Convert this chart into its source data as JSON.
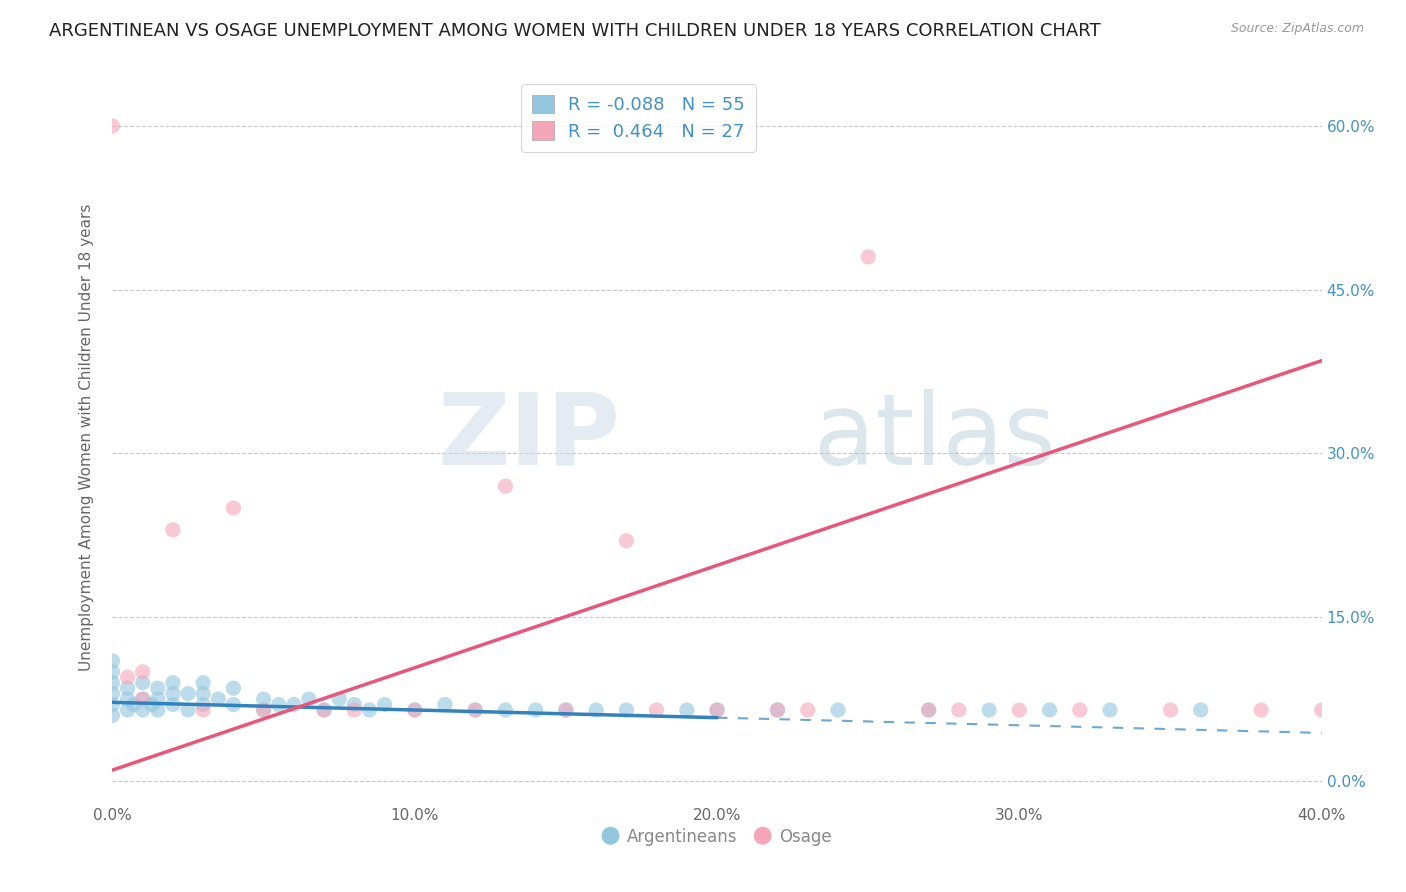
{
  "title": "ARGENTINEAN VS OSAGE UNEMPLOYMENT AMONG WOMEN WITH CHILDREN UNDER 18 YEARS CORRELATION CHART",
  "source": "Source: ZipAtlas.com",
  "ylabel": "Unemployment Among Women with Children Under 18 years",
  "xlim": [
    0.0,
    0.4
  ],
  "ylim": [
    -0.02,
    0.65
  ],
  "xticks": [
    0.0,
    0.1,
    0.2,
    0.3,
    0.4
  ],
  "xtick_labels": [
    "0.0%",
    "10.0%",
    "20.0%",
    "30.0%",
    "40.0%"
  ],
  "yticks_right": [
    0.0,
    0.15,
    0.3,
    0.45,
    0.6
  ],
  "ytick_labels_right": [
    "0.0%",
    "15.0%",
    "30.0%",
    "45.0%",
    "60.0%"
  ],
  "legend_r1": "R = -0.088",
  "legend_n1": "N = 55",
  "legend_r2": "R =  0.464",
  "legend_n2": "N = 27",
  "argentinean_color": "#92c5de",
  "osage_color": "#f4a6b8",
  "argentinean_line_color": "#3182bd",
  "osage_line_color": "#e8567a",
  "background_color": "#ffffff",
  "grid_color": "#bbbbbb",
  "title_fontsize": 13,
  "axis_label_fontsize": 11,
  "tick_fontsize": 11,
  "argentinean_scatter": {
    "x": [
      0.0,
      0.0,
      0.0,
      0.0,
      0.0,
      0.0,
      0.005,
      0.005,
      0.005,
      0.007,
      0.01,
      0.01,
      0.01,
      0.013,
      0.015,
      0.015,
      0.015,
      0.02,
      0.02,
      0.02,
      0.025,
      0.025,
      0.03,
      0.03,
      0.03,
      0.035,
      0.04,
      0.04,
      0.05,
      0.05,
      0.055,
      0.06,
      0.065,
      0.07,
      0.075,
      0.08,
      0.085,
      0.09,
      0.1,
      0.11,
      0.12,
      0.13,
      0.14,
      0.15,
      0.16,
      0.17,
      0.19,
      0.2,
      0.22,
      0.24,
      0.27,
      0.29,
      0.31,
      0.33,
      0.36
    ],
    "y": [
      0.06,
      0.07,
      0.08,
      0.09,
      0.1,
      0.11,
      0.065,
      0.075,
      0.085,
      0.07,
      0.065,
      0.075,
      0.09,
      0.07,
      0.065,
      0.075,
      0.085,
      0.07,
      0.08,
      0.09,
      0.065,
      0.08,
      0.07,
      0.08,
      0.09,
      0.075,
      0.07,
      0.085,
      0.065,
      0.075,
      0.07,
      0.07,
      0.075,
      0.065,
      0.075,
      0.07,
      0.065,
      0.07,
      0.065,
      0.07,
      0.065,
      0.065,
      0.065,
      0.065,
      0.065,
      0.065,
      0.065,
      0.065,
      0.065,
      0.065,
      0.065,
      0.065,
      0.065,
      0.065,
      0.065
    ]
  },
  "osage_scatter": {
    "x": [
      0.0,
      0.005,
      0.01,
      0.02,
      0.03,
      0.05,
      0.07,
      0.1,
      0.13,
      0.15,
      0.17,
      0.2,
      0.22,
      0.25,
      0.28,
      0.3,
      0.35,
      0.01,
      0.04,
      0.08,
      0.12,
      0.18,
      0.23,
      0.27,
      0.32,
      0.38,
      0.4
    ],
    "y": [
      0.6,
      0.095,
      0.075,
      0.23,
      0.065,
      0.065,
      0.065,
      0.065,
      0.27,
      0.065,
      0.22,
      0.065,
      0.065,
      0.48,
      0.065,
      0.065,
      0.065,
      0.1,
      0.25,
      0.065,
      0.065,
      0.065,
      0.065,
      0.065,
      0.065,
      0.065,
      0.065
    ]
  },
  "argentinean_trend_solid": {
    "x_start": 0.0,
    "x_end": 0.2,
    "y_start": 0.072,
    "y_end": 0.058
  },
  "argentinean_trend_dashed": {
    "x_start": 0.2,
    "x_end": 0.4,
    "y_start": 0.058,
    "y_end": 0.044
  },
  "osage_trend": {
    "x_start": 0.0,
    "x_end": 0.4,
    "y_start": 0.01,
    "y_end": 0.385
  }
}
